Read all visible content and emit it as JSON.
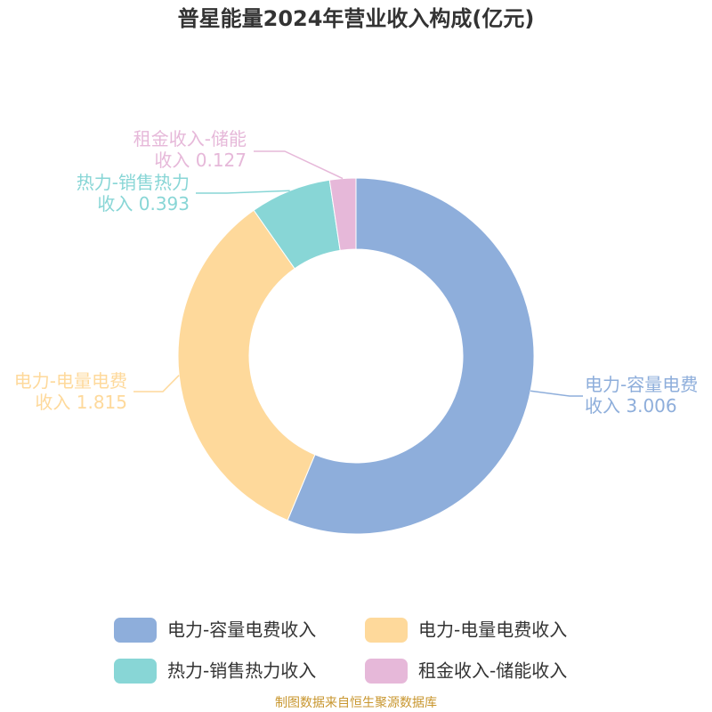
{
  "chart_data": {
    "type": "donut",
    "title": "普星能量2024年营业收入构成(亿元)",
    "categories": [
      "电力-容量电费收入",
      "电力-电量电费收入",
      "热力-销售热力收入",
      "租金收入-储能收入"
    ],
    "values": [
      3.006,
      1.815,
      0.393,
      0.127
    ],
    "colors": [
      "#8eaedb",
      "#fed99b",
      "#88d6d6",
      "#e6b8d9"
    ],
    "source": "制图数据来自恒生聚源数据库"
  }
}
